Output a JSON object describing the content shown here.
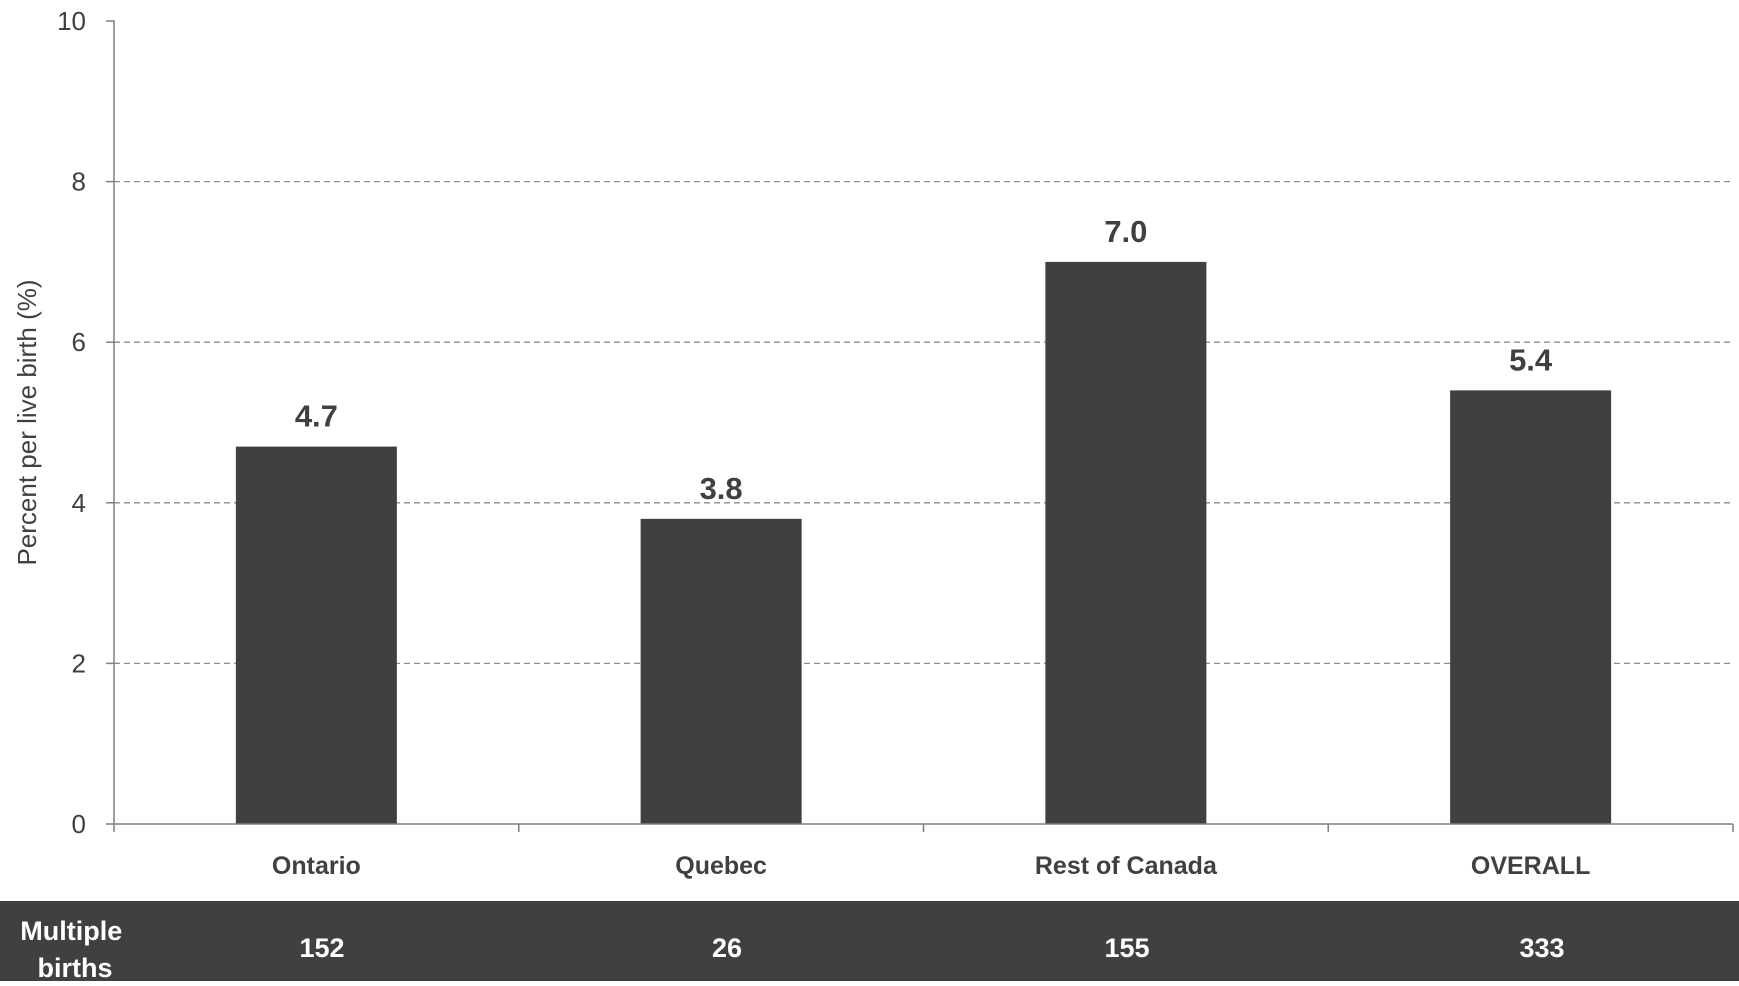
{
  "chart_data": {
    "type": "bar",
    "title": "",
    "xlabel": "",
    "ylabel": "Percent per live birth (%)",
    "categories": [
      "Ontario",
      "Quebec",
      "Rest of Canada",
      "OVERALL"
    ],
    "values": [
      4.7,
      3.8,
      7.0,
      5.4
    ],
    "data_labels": [
      "4.7",
      "3.8",
      "7.0",
      "5.4"
    ],
    "ylim": [
      0,
      10
    ],
    "yticks": [
      0,
      2,
      4,
      6,
      8,
      10
    ],
    "grid": "horizontal-dashed",
    "legend": "none",
    "bar_color": "#404040",
    "table": {
      "row_label_lines": [
        "Multiple",
        "births"
      ],
      "values": [
        "152",
        "26",
        "155",
        "333"
      ],
      "background": "#404040"
    }
  }
}
